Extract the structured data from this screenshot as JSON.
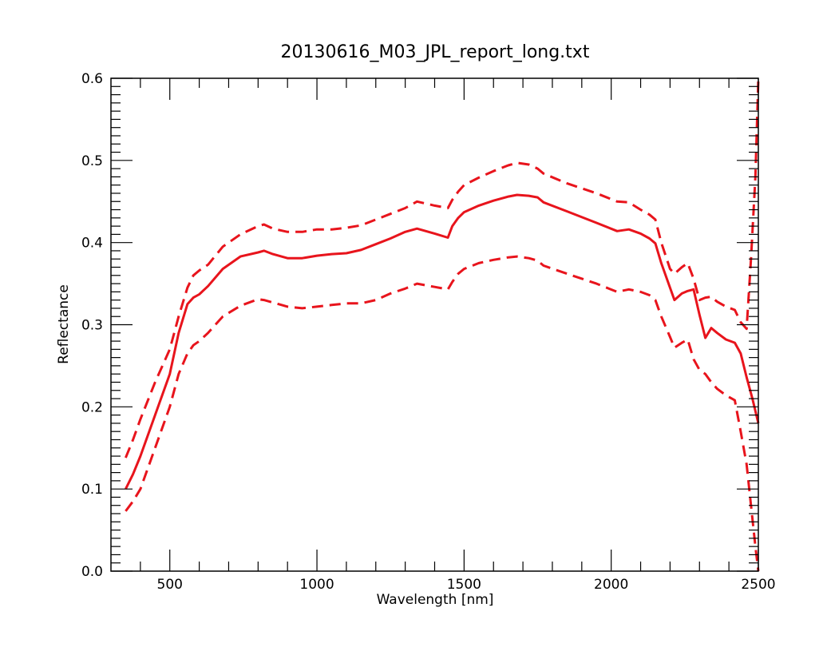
{
  "chart_data": {
    "type": "line",
    "title": "20130616_M03_JPL_report_long.txt",
    "xlabel": "Wavelength [nm]",
    "ylabel": "Reflectance",
    "xlim": [
      300,
      2500
    ],
    "ylim": [
      0.0,
      0.6
    ],
    "x_ticks": [
      500,
      1000,
      1500,
      2000,
      2500
    ],
    "x_tick_labels": [
      "500",
      "1000",
      "1500",
      "2000",
      "2500"
    ],
    "y_ticks": [
      0.0,
      0.1,
      0.2,
      0.3,
      0.4,
      0.5,
      0.6
    ],
    "y_tick_labels": [
      "0.0",
      "0.1",
      "0.2",
      "0.3",
      "0.4",
      "0.5",
      "0.6"
    ],
    "grid": false,
    "legend": "none",
    "colors": {
      "line": "#e8141c",
      "axis": "#000000"
    },
    "series": [
      {
        "style": "solid",
        "x": [
          350,
          375,
          400,
          450,
          500,
          530,
          560,
          580,
          600,
          630,
          680,
          740,
          800,
          820,
          850,
          900,
          950,
          1000,
          1050,
          1100,
          1150,
          1200,
          1250,
          1300,
          1340,
          1400,
          1445,
          1460,
          1480,
          1500,
          1550,
          1600,
          1650,
          1680,
          1720,
          1750,
          1770,
          1850,
          1950,
          2020,
          2060,
          2100,
          2130,
          2150,
          2170,
          2200,
          2215,
          2240,
          2260,
          2280,
          2300,
          2320,
          2340,
          2360,
          2390,
          2420,
          2440,
          2460,
          2480,
          2500
        ],
        "y": [
          0.1,
          0.118,
          0.14,
          0.19,
          0.24,
          0.29,
          0.325,
          0.333,
          0.337,
          0.347,
          0.368,
          0.383,
          0.388,
          0.39,
          0.386,
          0.381,
          0.381,
          0.384,
          0.386,
          0.387,
          0.391,
          0.398,
          0.405,
          0.413,
          0.417,
          0.411,
          0.406,
          0.42,
          0.43,
          0.437,
          0.445,
          0.451,
          0.456,
          0.458,
          0.457,
          0.455,
          0.449,
          0.438,
          0.424,
          0.414,
          0.416,
          0.411,
          0.405,
          0.399,
          0.375,
          0.345,
          0.33,
          0.338,
          0.341,
          0.343,
          0.312,
          0.284,
          0.296,
          0.29,
          0.282,
          0.278,
          0.265,
          0.236,
          0.21,
          0.18
        ]
      },
      {
        "style": "dashed",
        "x": [
          350,
          375,
          400,
          450,
          500,
          530,
          560,
          580,
          600,
          630,
          680,
          740,
          800,
          820,
          850,
          900,
          950,
          1000,
          1050,
          1100,
          1150,
          1200,
          1250,
          1300,
          1340,
          1400,
          1445,
          1460,
          1480,
          1500,
          1550,
          1600,
          1650,
          1680,
          1720,
          1750,
          1770,
          1850,
          1950,
          2020,
          2060,
          2100,
          2130,
          2150,
          2170,
          2200,
          2215,
          2240,
          2260,
          2280,
          2300,
          2320,
          2340,
          2360,
          2390,
          2420,
          2440,
          2460,
          2475,
          2490,
          2500
        ],
        "y": [
          0.138,
          0.16,
          0.185,
          0.23,
          0.27,
          0.31,
          0.345,
          0.36,
          0.366,
          0.373,
          0.395,
          0.41,
          0.42,
          0.422,
          0.417,
          0.413,
          0.413,
          0.416,
          0.416,
          0.418,
          0.421,
          0.428,
          0.435,
          0.442,
          0.45,
          0.445,
          0.442,
          0.452,
          0.462,
          0.47,
          0.479,
          0.487,
          0.494,
          0.497,
          0.495,
          0.49,
          0.484,
          0.472,
          0.46,
          0.45,
          0.449,
          0.44,
          0.434,
          0.428,
          0.4,
          0.368,
          0.362,
          0.37,
          0.375,
          0.356,
          0.33,
          0.333,
          0.334,
          0.328,
          0.322,
          0.318,
          0.303,
          0.295,
          0.38,
          0.48,
          0.6
        ]
      },
      {
        "style": "dashed",
        "x": [
          350,
          375,
          400,
          450,
          500,
          530,
          560,
          580,
          600,
          630,
          680,
          740,
          800,
          820,
          850,
          900,
          950,
          1000,
          1050,
          1100,
          1150,
          1200,
          1250,
          1300,
          1340,
          1400,
          1445,
          1460,
          1480,
          1500,
          1550,
          1600,
          1650,
          1680,
          1720,
          1750,
          1770,
          1850,
          1950,
          2020,
          2060,
          2100,
          2130,
          2150,
          2170,
          2200,
          2215,
          2240,
          2260,
          2280,
          2300,
          2320,
          2340,
          2360,
          2390,
          2420,
          2440,
          2460,
          2475,
          2490,
          2500
        ],
        "y": [
          0.073,
          0.085,
          0.1,
          0.15,
          0.2,
          0.24,
          0.265,
          0.275,
          0.28,
          0.29,
          0.31,
          0.323,
          0.331,
          0.33,
          0.327,
          0.322,
          0.32,
          0.322,
          0.324,
          0.326,
          0.326,
          0.33,
          0.338,
          0.344,
          0.35,
          0.346,
          0.343,
          0.352,
          0.362,
          0.368,
          0.375,
          0.379,
          0.382,
          0.383,
          0.381,
          0.378,
          0.372,
          0.362,
          0.35,
          0.34,
          0.343,
          0.34,
          0.336,
          0.33,
          0.31,
          0.285,
          0.272,
          0.278,
          0.282,
          0.258,
          0.245,
          0.24,
          0.23,
          0.222,
          0.214,
          0.208,
          0.17,
          0.13,
          0.08,
          0.03,
          0.0
        ]
      }
    ]
  }
}
